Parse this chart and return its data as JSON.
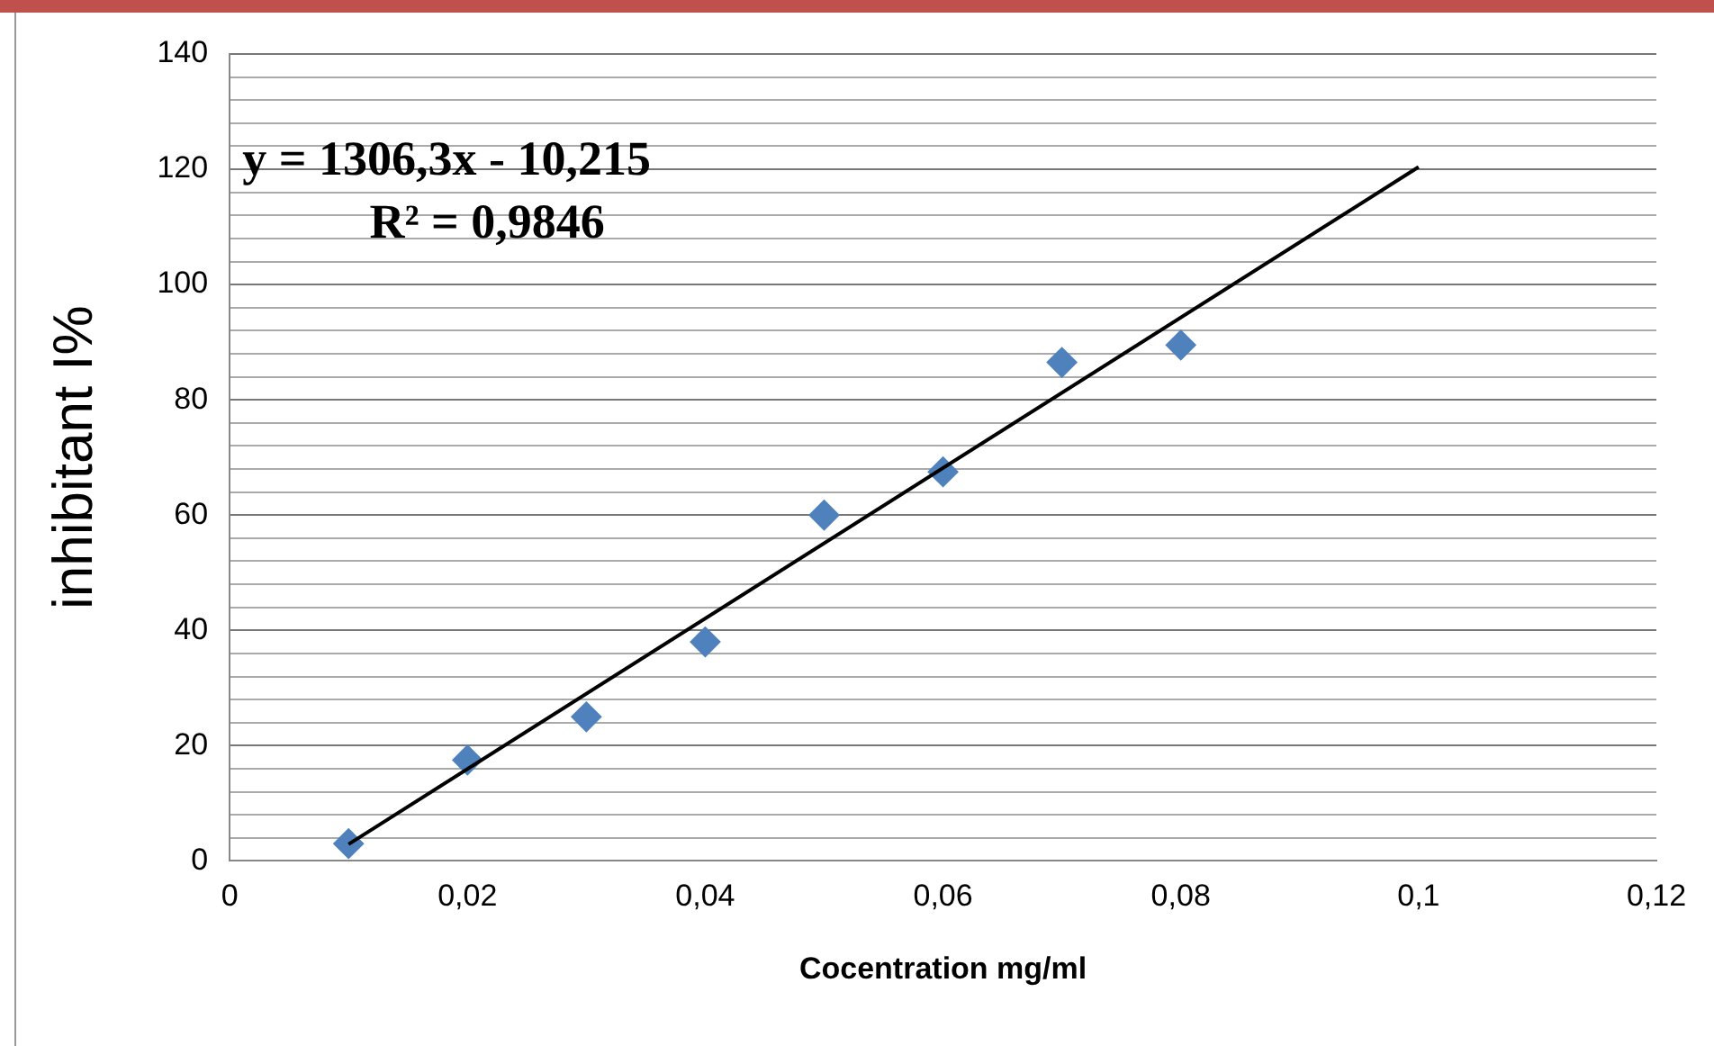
{
  "chart_data": {
    "type": "scatter",
    "xlabel": "Cocentration mg/ml",
    "ylabel": "inhibitant I%",
    "annotations": [
      "y = 1306,3x - 10,215",
      "R² = 0,9846"
    ],
    "series": [
      {
        "type": "scatter",
        "color": "#4f81bd",
        "marker": "diamond",
        "x": [
          0.01,
          0.02,
          0.03,
          0.04,
          0.05,
          0.06,
          0.07,
          0.08
        ],
        "values": [
          3,
          17.5,
          25,
          38,
          60,
          67.5,
          86.5,
          89.5
        ]
      },
      {
        "type": "line",
        "color": "#000000",
        "marker": "none",
        "x": [
          0.01,
          0.1
        ],
        "values": [
          2.9,
          120.4
        ]
      }
    ],
    "xlim": [
      0,
      0.12
    ],
    "xticks": [
      0,
      {
        "value": 0.02,
        "label": "0,02"
      },
      {
        "value": 0.04,
        "label": "0,04"
      },
      {
        "value": 0.06,
        "label": "0,06"
      },
      {
        "value": 0.08,
        "label": "0,08"
      },
      {
        "value": 0.1,
        "label": "0,1"
      },
      {
        "value": 0.12,
        "label": "0,12"
      }
    ],
    "ylim": [
      0,
      140
    ],
    "yticks": [
      0,
      {
        "value": 4,
        "label": null
      },
      {
        "value": 8,
        "label": null
      },
      {
        "value": 12,
        "label": null
      },
      {
        "value": 16,
        "label": null
      },
      20,
      {
        "value": 24,
        "label": null
      },
      {
        "value": 28,
        "label": null
      },
      {
        "value": 32,
        "label": null
      },
      {
        "value": 36,
        "label": null
      },
      40,
      {
        "value": 44,
        "label": null
      },
      {
        "value": 48,
        "label": null
      },
      {
        "value": 52,
        "label": null
      },
      {
        "value": 56,
        "label": null
      },
      60,
      {
        "value": 64,
        "label": null
      },
      {
        "value": 68,
        "label": null
      },
      {
        "value": 72,
        "label": null
      },
      {
        "value": 76,
        "label": null
      },
      80,
      {
        "value": 84,
        "label": null
      },
      {
        "value": 88,
        "label": null
      },
      {
        "value": 92,
        "label": null
      },
      {
        "value": 96,
        "label": null
      },
      100,
      {
        "value": 104,
        "label": null
      },
      {
        "value": 108,
        "label": null
      },
      {
        "value": 112,
        "label": null
      },
      {
        "value": 116,
        "label": null
      },
      120,
      {
        "value": 124,
        "label": null
      },
      {
        "value": 128,
        "label": null
      },
      {
        "value": 132,
        "label": null
      },
      {
        "value": 136,
        "label": null
      },
      140
    ],
    "grid": "y",
    "legend": false
  }
}
